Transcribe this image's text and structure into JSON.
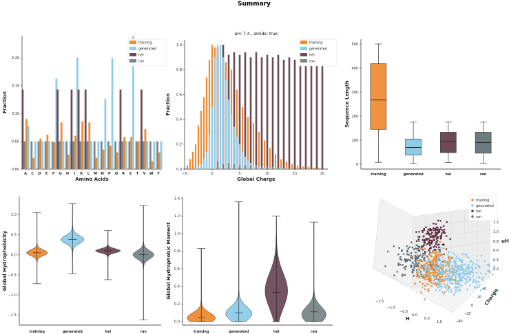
{
  "suptitle": "Summary",
  "colors": {
    "training": "#EE8A30",
    "generated": "#8DCBEA",
    "hel": "#6E4A57",
    "ran": "#7A8688",
    "axis": "#222222",
    "box_training": "#F0923E",
    "box_generated": "#8DCBE7",
    "box_hel": "#6E4A57",
    "box_ran": "#6C7B7D",
    "scatter_hel": "#5B2C3F",
    "scatter_ran": "#5F7176"
  },
  "series_names": [
    "training",
    "generated",
    "hel",
    "ran"
  ],
  "chart_data": [
    {
      "id": "aa",
      "type": "bar",
      "title": "",
      "xlabel": "Amino Acids",
      "ylabel": "Fraction",
      "ylim": [
        0,
        0.24
      ],
      "yticks": [
        0.0,
        0.05,
        0.1,
        0.15,
        0.2
      ],
      "ytick_labels": [
        "0.00",
        "0.05",
        "0.10",
        "0.15",
        "0.20"
      ],
      "categories": [
        "A",
        "C",
        "D",
        "E",
        "F",
        "G",
        "H",
        "I",
        "K",
        "L",
        "M",
        "N",
        "P",
        "Q",
        "R",
        "S",
        "T",
        "V",
        "W",
        "Y"
      ],
      "series": [
        {
          "name": "ran",
          "values": [
            0.05,
            0.05,
            0.05,
            0.05,
            0.05,
            0.05,
            0.05,
            0.05,
            0.05,
            0.05,
            0.05,
            0.05,
            0.05,
            0.05,
            0.05,
            0.05,
            0.05,
            0.05,
            0.05,
            0.05
          ]
        },
        {
          "name": "hel",
          "values": [
            0.143,
            0,
            0,
            0,
            0,
            0.143,
            0,
            0.143,
            0.143,
            0.143,
            0,
            0,
            0,
            0,
            0.143,
            0,
            0,
            0.143,
            0,
            0
          ]
        },
        {
          "name": "training",
          "values": [
            0.09,
            0.02,
            0.055,
            0.062,
            0.048,
            0.084,
            0.026,
            0.06,
            0.086,
            0.084,
            0.02,
            0.035,
            0.042,
            0.03,
            0.058,
            0.058,
            0.05,
            0.072,
            0.014,
            0.03
          ]
        },
        {
          "name": "generated",
          "values": [
            0.078,
            0.05,
            0.05,
            0.05,
            0.163,
            0.05,
            0.05,
            0.201,
            0.05,
            0.05,
            0.05,
            0.126,
            0.2,
            0.05,
            0.05,
            0.24,
            0.05,
            0.05,
            0.05,
            0.05
          ]
        }
      ],
      "legend_position": "top-right"
    },
    {
      "id": "charge",
      "type": "bar",
      "title": "pH: 7.4 ,  amide: true",
      "xlabel": "Global Charge",
      "ylabel": "Fraction",
      "xlim": [
        -5,
        21
      ],
      "ylim": [
        0,
        1.04
      ],
      "xticks": [
        -5,
        0,
        5,
        10,
        15,
        20
      ],
      "xtick_labels": [
        "−5",
        "0",
        "5",
        "10",
        "15",
        "20"
      ],
      "yticks": [
        0.0,
        0.2,
        0.4,
        0.6,
        0.8,
        1.0
      ],
      "ytick_labels": [
        "0.0",
        "0.2",
        "0.4",
        "0.6",
        "0.8",
        "1.0"
      ],
      "series": [
        {
          "name": "training",
          "x": [
            -4.5,
            -4,
            -3.5,
            -3,
            -2.5,
            -2,
            -1.5,
            -1,
            -0.5,
            0,
            0.5,
            1,
            1.5,
            2,
            2.5,
            3,
            3.5,
            4,
            4.5,
            5,
            5.5,
            6,
            6.5,
            7,
            7.5,
            8,
            8.5,
            9,
            9.5,
            10,
            10.5,
            11,
            11.5,
            12,
            12.5,
            13,
            13.5,
            14,
            14.5,
            15,
            15.5,
            16,
            16.5,
            17,
            17.5,
            18,
            18.5,
            19,
            19.5,
            20
          ],
          "values": [
            0.03,
            0.08,
            0.14,
            0.2,
            0.35,
            0.47,
            0.58,
            0.74,
            0.88,
            1.0,
            0.98,
            0.92,
            0.86,
            0.85,
            0.86,
            0.84,
            0.8,
            0.72,
            0.64,
            0.56,
            0.5,
            0.45,
            0.42,
            0.4,
            0.37,
            0.33,
            0.3,
            0.26,
            0.23,
            0.2,
            0.17,
            0.14,
            0.12,
            0.1,
            0.08,
            0.07,
            0.06,
            0.05,
            0.04,
            0.04,
            0.03,
            0.03,
            0.02,
            0.02,
            0.02,
            0.02,
            0.01,
            0.01,
            0.01,
            0.01
          ]
        },
        {
          "name": "generated",
          "x": [
            -3,
            -2.5,
            -2,
            -1.5,
            -1,
            -0.5,
            0,
            0.5,
            1,
            1.5,
            2,
            2.5,
            3,
            3.5,
            4,
            4.5,
            5,
            5.5,
            6,
            6.5,
            7,
            7.5,
            8,
            8.5,
            9,
            9.5,
            10,
            10.5,
            11,
            11.5,
            12,
            12.5,
            13
          ],
          "values": [
            0.01,
            0.02,
            0.04,
            0.08,
            0.14,
            0.28,
            0.5,
            0.9,
            1.0,
            1.0,
            0.9,
            0.72,
            0.56,
            0.44,
            0.34,
            0.26,
            0.2,
            0.14,
            0.1,
            0.07,
            0.05,
            0.04,
            0.03,
            0.02,
            0.02,
            0.01,
            0.01,
            0.01,
            0.01,
            0.01,
            0.01,
            0.01,
            0.01
          ]
        },
        {
          "name": "hel",
          "x": [
            1,
            2,
            3,
            4,
            5,
            6,
            7,
            8,
            9,
            10,
            11,
            12,
            13,
            14,
            15,
            16,
            17,
            18,
            19,
            20
          ],
          "values": [
            0.98,
            1.0,
            0.92,
            0.94,
            0.92,
            0.94,
            0.9,
            0.94,
            0.9,
            0.92,
            0.9,
            0.92,
            0.88,
            0.9,
            0.88,
            0.9,
            0.88,
            0.88,
            0.88,
            0.86
          ]
        },
        {
          "name": "ran",
          "x": [
            1,
            2,
            3,
            4,
            5,
            6,
            7,
            8,
            9,
            10,
            11,
            12,
            13,
            14
          ],
          "values": [
            0.06,
            0.04,
            0.05,
            0.04,
            0.03,
            0.03,
            0.03,
            0.02,
            0.02,
            0.02,
            0.02,
            0.01,
            0.01,
            0.01
          ]
        }
      ],
      "legend_position": "top-right"
    },
    {
      "id": "seqlen",
      "type": "box",
      "xlabel": "",
      "ylabel": "Sequence Length",
      "ylim": [
        -20,
        520
      ],
      "yticks": [
        0,
        100,
        200,
        300,
        400,
        500
      ],
      "ytick_labels": [
        "0",
        "100",
        "200",
        "300",
        "400",
        "500"
      ],
      "categories": [
        "training",
        "generated",
        "hel",
        "ran"
      ],
      "boxes": [
        {
          "name": "training",
          "whislo": 8,
          "q1": 145,
          "median": 268,
          "q3": 418,
          "whishi": 500
        },
        {
          "name": "generated",
          "whislo": 3,
          "q1": 38,
          "median": 70,
          "q3": 105,
          "whishi": 175
        },
        {
          "name": "hel",
          "whislo": 7,
          "q1": 48,
          "median": 93,
          "q3": 133,
          "whishi": 175
        },
        {
          "name": "ran",
          "whislo": 4,
          "q1": 46,
          "median": 90,
          "q3": 133,
          "whishi": 175
        }
      ]
    },
    {
      "id": "hydrophob",
      "type": "violin",
      "xlabel": "",
      "ylabel": "Global Hydrophobicity",
      "ylim": [
        -1.75,
        1.45
      ],
      "yticks": [
        -1.5,
        -1.0,
        -0.5,
        0.0,
        0.5,
        1.0
      ],
      "ytick_labels": [
        "−1.5",
        "−1.0",
        "−0.5",
        "0.0",
        "0.5",
        "1.0"
      ],
      "categories": [
        "training",
        "generated",
        "hel",
        "ran"
      ],
      "violins": [
        {
          "name": "training",
          "min": -0.72,
          "max": 1.05,
          "median": 0.05,
          "mode": 0.05,
          "spread": 0.07,
          "half_width": 0.6
        },
        {
          "name": "generated",
          "min": -0.47,
          "max": 1.27,
          "median": 0.38,
          "mode": 0.38,
          "spread": 0.1,
          "half_width": 0.65
        },
        {
          "name": "hel",
          "min": -0.62,
          "max": 0.6,
          "median": 0.1,
          "mode": 0.1,
          "spread": 0.05,
          "half_width": 0.7
        },
        {
          "name": "ran",
          "min": -1.62,
          "max": 1.23,
          "median": 0.0,
          "mode": 0.0,
          "spread": 0.1,
          "half_width": 0.6
        }
      ]
    },
    {
      "id": "moment",
      "type": "violin",
      "xlabel": "",
      "ylabel": "Global Hydrophobic Moment",
      "ylim": [
        -0.04,
        1.42
      ],
      "yticks": [
        0.0,
        0.2,
        0.4,
        0.6,
        0.8,
        1.0,
        1.2,
        1.4
      ],
      "ytick_labels": [
        "0.0",
        "0.2",
        "0.4",
        "0.6",
        "0.8",
        "1.0",
        "1.2",
        "1.4"
      ],
      "categories": [
        "training",
        "generated",
        "hel",
        "ran"
      ],
      "violins": [
        {
          "name": "training",
          "min": 0.0,
          "max": 0.83,
          "median": 0.05,
          "mode": 0.04,
          "spread": 0.06,
          "half_width": 0.75
        },
        {
          "name": "generated",
          "min": 0.0,
          "max": 1.36,
          "median": 0.1,
          "mode": 0.09,
          "spread": 0.08,
          "half_width": 0.7
        },
        {
          "name": "hel",
          "min": 0.0,
          "max": 1.2,
          "median": 0.33,
          "mode": 0.35,
          "spread": 0.2,
          "half_width": 0.6
        },
        {
          "name": "ran",
          "min": 0.0,
          "max": 1.13,
          "median": 0.11,
          "mode": 0.08,
          "spread": 0.09,
          "half_width": 0.65
        }
      ]
    },
    {
      "id": "scatter3d",
      "type": "scatter3d",
      "xlabel": "H",
      "ylabel": "Charge",
      "zlabel": "uH",
      "xticks": [
        "−1.5",
        "−1.0",
        "−0.5",
        "0.0",
        "0.5",
        "1.0"
      ],
      "yticks": [
        "−40",
        "−20",
        "0",
        "20",
        "40"
      ],
      "zticks": [
        "0.2",
        "0.4",
        "0.6",
        "0.8",
        "1.0",
        "1.2"
      ],
      "series": [
        "training",
        "generated",
        "hel",
        "ran"
      ],
      "legend_position": "top-right"
    }
  ]
}
